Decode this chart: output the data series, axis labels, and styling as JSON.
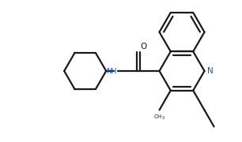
{
  "background_color": "#ffffff",
  "line_color": "#1a1a1a",
  "atom_color_N": "#1a50aa",
  "atom_color_NH": "#1a50aa",
  "line_width": 1.6,
  "figsize": [
    3.06,
    1.8
  ],
  "dpi": 100,
  "xlim": [
    0,
    3.06
  ],
  "ylim": [
    0,
    1.8
  ]
}
